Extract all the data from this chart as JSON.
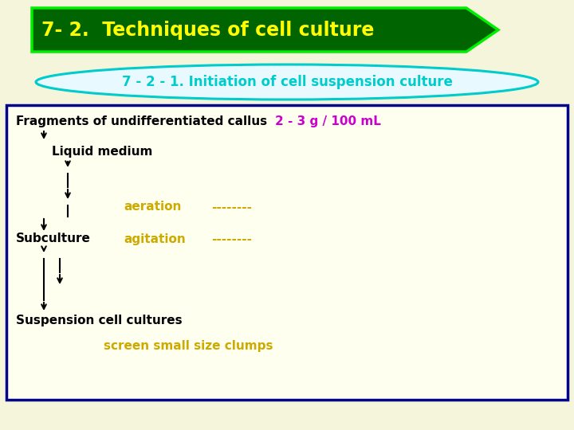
{
  "bg_color": "#f5f5dc",
  "title_text": "7- 2.  Techniques of cell culture",
  "title_bg": "#006400",
  "title_edge": "#00ee00",
  "title_fg": "#ffff00",
  "subtitle_text": "7 - 2 - 1. Initiation of cell suspension culture",
  "subtitle_fg": "#00cccc",
  "subtitle_border": "#00cccc",
  "subtitle_fill": "#e8faff",
  "box_border": "#00008b",
  "box_bg": "#fffff0",
  "line1": "Fragments of undifferentiated callus",
  "line1_color": "#000000",
  "line1_note": "2 - 3 g / 100 mL",
  "line1_note_color": "#cc00cc",
  "line2": "Liquid medium",
  "line2_color": "#000000",
  "line3": "aeration",
  "line3_color": "#ccaa00",
  "line3_dashes": "--------",
  "line3_dash_color": "#ccaa00",
  "line4": "Subculture",
  "line4_color": "#000000",
  "line4b": "agitation",
  "line4b_color": "#ccaa00",
  "line4b_dashes": "--------",
  "line4b_dash_color": "#ccaa00",
  "line5": "Suspension cell cultures",
  "line5_color": "#000000",
  "line6": "screen small size clumps",
  "line6_color": "#ccaa00",
  "arrow_color": "#000000"
}
